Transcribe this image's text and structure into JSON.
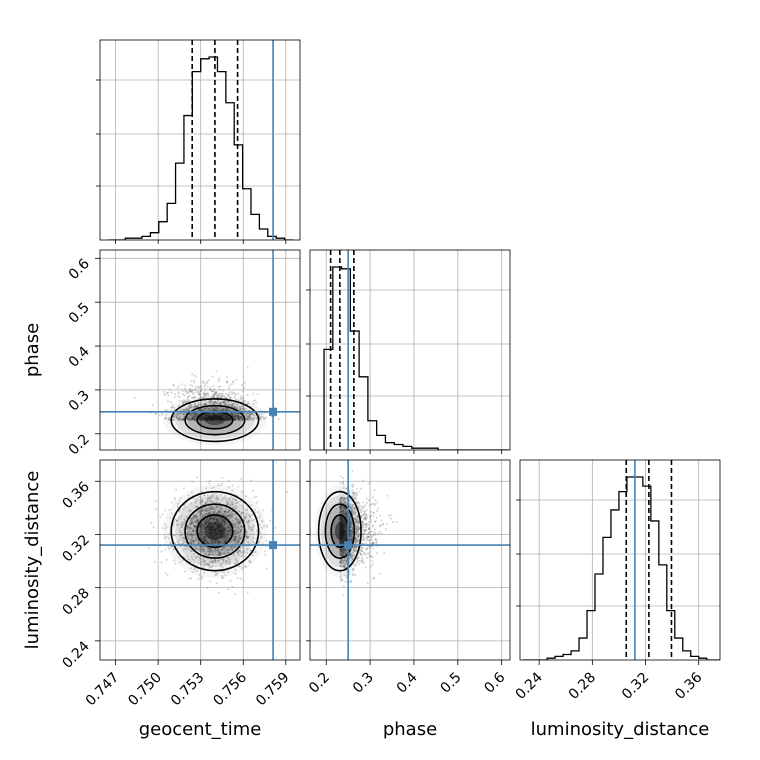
{
  "chart_data": {
    "type": "corner",
    "parameters": [
      "geocent_time",
      "phase",
      "luminosity_distance"
    ],
    "axis_labels": {
      "geocent_time": "geocent_time",
      "phase": "phase",
      "luminosity_distance": "luminosity_distance"
    },
    "ranges": {
      "geocent_time": [
        0.7459,
        0.76
      ],
      "phase": [
        0.163,
        0.619
      ],
      "luminosity_distance": [
        0.2256,
        0.376
      ]
    },
    "ticks": {
      "geocent_time": {
        "values": [
          0.747,
          0.75,
          0.753,
          0.756,
          0.759
        ],
        "labels": [
          "0.747",
          "0.750",
          "0.753",
          "0.756",
          "0.759"
        ]
      },
      "phase": {
        "values": [
          0.2,
          0.3,
          0.4,
          0.5,
          0.6
        ],
        "labels": [
          "0.2",
          "0.3",
          "0.4",
          "0.5",
          "0.6"
        ]
      },
      "luminosity_distance": {
        "values": [
          0.24,
          0.28,
          0.32,
          0.36
        ],
        "labels": [
          "0.24",
          "0.28",
          "0.32",
          "0.36"
        ]
      }
    },
    "truths": {
      "geocent_time": 0.7581,
      "phase": 0.25,
      "luminosity_distance": 0.312
    },
    "quantiles": {
      "geocent_time": [
        0.7524,
        0.754,
        0.7556
      ],
      "phase": [
        0.21,
        0.231,
        0.263
      ],
      "luminosity_distance": [
        0.3055,
        0.3225,
        0.3395
      ]
    },
    "histograms": {
      "geocent_time": {
        "edges_range": [
          0.7465,
          0.7595
        ],
        "counts": [
          0,
          0,
          1,
          1,
          2,
          4,
          10,
          20,
          42,
          68,
          92,
          99,
          100,
          92,
          75,
          52,
          28,
          14,
          6,
          2,
          1,
          0
        ]
      },
      "phase": {
        "edges_range": [
          0.195,
          0.615
        ],
        "counts": [
          55,
          100,
          99,
          65,
          40,
          16,
          8,
          4,
          3,
          2,
          1,
          1,
          1,
          0,
          0,
          0,
          0,
          0,
          0,
          0,
          0
        ]
      },
      "luminosity_distance": {
        "edges_range": [
          0.228,
          0.378
        ],
        "counts": [
          0,
          0,
          0,
          1,
          2,
          3,
          5,
          12,
          27,
          47,
          67,
          82,
          92,
          100,
          100,
          95,
          76,
          52,
          27,
          12,
          5,
          2,
          1,
          0,
          0
        ]
      }
    },
    "joint": [
      {
        "x": "geocent_time",
        "y": "phase",
        "center": [
          0.754,
          0.231
        ],
        "spread": [
          0.0014,
          0.022
        ],
        "rho": -0.2,
        "n_points": 1800
      },
      {
        "x": "geocent_time",
        "y": "luminosity_distance",
        "center": [
          0.754,
          0.3225
        ],
        "spread": [
          0.0014,
          0.0135
        ],
        "rho": 0.0,
        "n_points": 1800
      },
      {
        "x": "phase",
        "y": "luminosity_distance",
        "center": [
          0.231,
          0.3225
        ],
        "spread": [
          0.022,
          0.0135
        ],
        "rho": 0.05,
        "n_points": 1800
      }
    ],
    "grid": true,
    "colors": {
      "truth": "#4682b4",
      "hist": "#000000",
      "grid": "#b0b0b0",
      "points": "#555555"
    }
  }
}
